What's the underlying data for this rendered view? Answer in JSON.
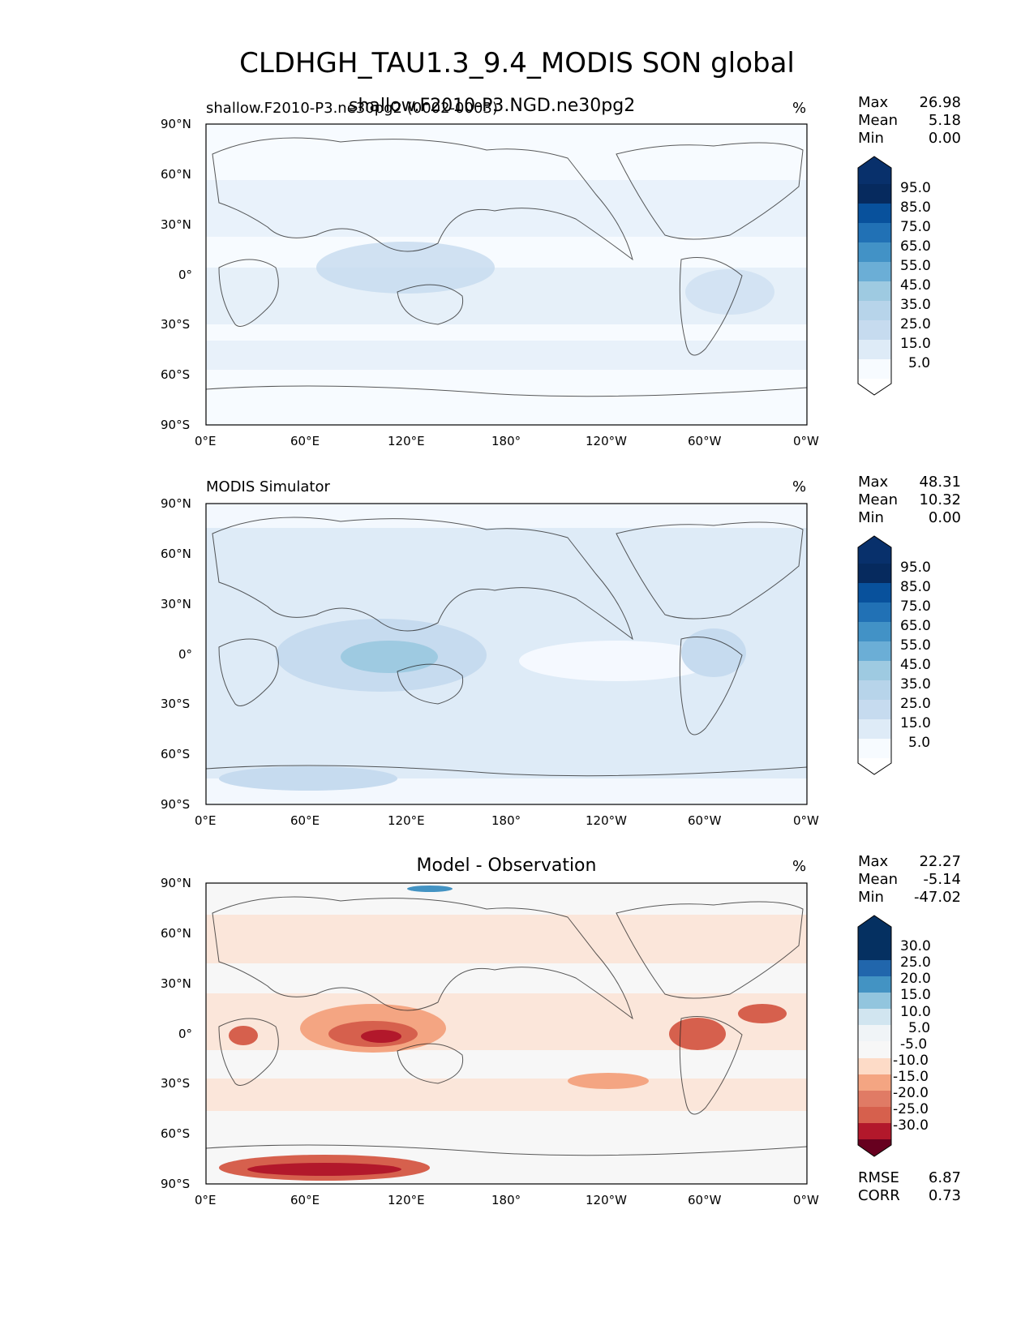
{
  "figure": {
    "title": "CLDHGH_TAU1.3_9.4_MODIS SON global",
    "model_line": "shallow.F2010-P3.NGD.ne30pg2",
    "model_line_overprint": "shallow.F2010-P3.ne30pg2 (0002-0003)"
  },
  "panels": [
    {
      "title": "shallow.F2010-P3.ne30pg2 (0002-0003)",
      "units": "%",
      "stats": [
        {
          "label": "Max",
          "value": "26.98"
        },
        {
          "label": "Mean",
          "value": "5.18"
        },
        {
          "label": "Min",
          "value": "0.00"
        }
      ],
      "colorbar": {
        "ticks": [
          "95.0",
          "85.0",
          "75.0",
          "65.0",
          "55.0",
          "45.0",
          "35.0",
          "25.0",
          "15.0",
          "5.0"
        ]
      }
    },
    {
      "title": "MODIS Simulator",
      "units": "%",
      "stats": [
        {
          "label": "Max",
          "value": "48.31"
        },
        {
          "label": "Mean",
          "value": "10.32"
        },
        {
          "label": "Min",
          "value": "0.00"
        }
      ],
      "colorbar": {
        "ticks": [
          "95.0",
          "85.0",
          "75.0",
          "65.0",
          "55.0",
          "45.0",
          "35.0",
          "25.0",
          "15.0",
          "5.0"
        ]
      }
    },
    {
      "title": "Model - Observation",
      "units": "%",
      "stats": [
        {
          "label": "Max",
          "value": "22.27"
        },
        {
          "label": "Mean",
          "value": "-5.14"
        },
        {
          "label": "Min",
          "value": "-47.02"
        }
      ],
      "colorbar": {
        "ticks": [
          "30.0",
          "25.0",
          "20.0",
          "15.0",
          "10.0",
          "5.0",
          "-5.0",
          "-10.0",
          "-15.0",
          "-20.0",
          "-25.0",
          "-30.0"
        ]
      },
      "metrics": [
        {
          "label": "RMSE",
          "value": "6.87"
        },
        {
          "label": "CORR",
          "value": "0.73"
        }
      ]
    }
  ],
  "axes": {
    "x_ticks": [
      "0°E",
      "60°E",
      "120°E",
      "180°",
      "120°W",
      "60°W",
      "0°W"
    ],
    "y_ticks": [
      "90°N",
      "60°N",
      "30°N",
      "0°",
      "30°S",
      "60°S",
      "90°S"
    ]
  },
  "colors": {
    "blues": [
      "#f7fbff",
      "#deebf7",
      "#c6dbef",
      "#9ecae1",
      "#6baed6",
      "#4292c6",
      "#2171b5",
      "#08519c",
      "#08306b",
      "#062a5e"
    ],
    "diff": [
      "#053061",
      "#2166ac",
      "#4393c3",
      "#92c5de",
      "#d1e5f0",
      "#f7f7f7",
      "#fddbc7",
      "#f4a582",
      "#d6604d",
      "#b2182b",
      "#8b0a1f",
      "#67001f"
    ]
  },
  "chart_data": [
    {
      "type": "heatmap",
      "title": "shallow.F2010-P3.ne30pg2 (0002-0003)",
      "units": "%",
      "x_ticks": [
        "0°E",
        "60°E",
        "120°E",
        "180°",
        "120°W",
        "60°W",
        "0°W"
      ],
      "y_ticks": [
        "90°N",
        "60°N",
        "30°N",
        "0°",
        "30°S",
        "60°S",
        "90°S"
      ],
      "levels": [
        5,
        15,
        25,
        35,
        45,
        55,
        65,
        75,
        85,
        95
      ],
      "stats": {
        "max": 26.98,
        "mean": 5.18,
        "min": 0.0
      }
    },
    {
      "type": "heatmap",
      "title": "MODIS Simulator",
      "units": "%",
      "x_ticks": [
        "0°E",
        "60°E",
        "120°E",
        "180°",
        "120°W",
        "60°W",
        "0°W"
      ],
      "y_ticks": [
        "90°N",
        "60°N",
        "30°N",
        "0°",
        "30°S",
        "60°S",
        "90°S"
      ],
      "levels": [
        5,
        15,
        25,
        35,
        45,
        55,
        65,
        75,
        85,
        95
      ],
      "stats": {
        "max": 48.31,
        "mean": 10.32,
        "min": 0.0
      }
    },
    {
      "type": "heatmap",
      "title": "Model - Observation",
      "units": "%",
      "x_ticks": [
        "0°E",
        "60°E",
        "120°E",
        "180°",
        "120°W",
        "60°W",
        "0°W"
      ],
      "y_ticks": [
        "90°N",
        "60°N",
        "30°N",
        "0°",
        "30°S",
        "60°S",
        "90°S"
      ],
      "levels": [
        -30,
        -25,
        -20,
        -15,
        -10,
        -5,
        5,
        10,
        15,
        20,
        25,
        30
      ],
      "stats": {
        "max": 22.27,
        "mean": -5.14,
        "min": -47.02,
        "rmse": 6.87,
        "corr": 0.73
      }
    }
  ]
}
